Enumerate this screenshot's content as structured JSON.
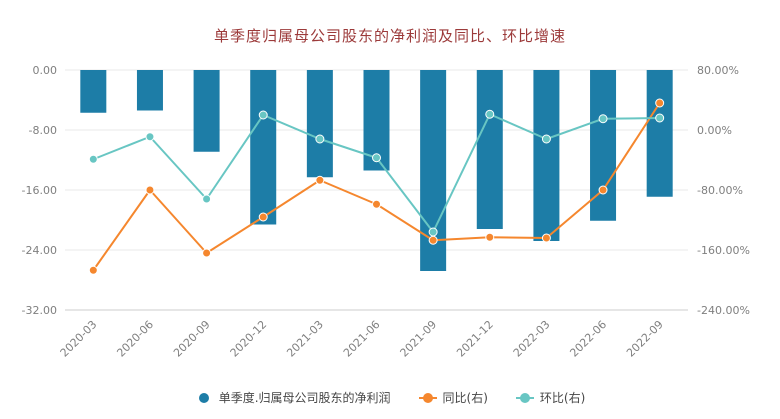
{
  "colors": {
    "title": "#9c3a3a",
    "axis_label": "#7f7f7f",
    "grid": "#e9e9e9",
    "axis_line": "#cccccc",
    "background": "#ffffff",
    "bar": "#1d7da7",
    "yoy_line": "#f5872e",
    "qoq_line": "#68c6c3"
  },
  "chart_data": {
    "type": "bar+line",
    "title": "单季度归属母公司股东的净利润及同比、环比增速",
    "categories": [
      "2020-03",
      "2020-06",
      "2020-09",
      "2020-12",
      "2021-03",
      "2021-06",
      "2021-09",
      "2021-12",
      "2022-03",
      "2022-06",
      "2022-09"
    ],
    "series": [
      {
        "name": "单季度.归属母公司股东的净利润",
        "type": "bar",
        "axis": "left",
        "color": "#1d7da7",
        "values": [
          -5.7,
          -5.4,
          -10.9,
          -20.6,
          -14.3,
          -13.4,
          -26.8,
          -21.2,
          -22.8,
          -20.1,
          -16.9
        ]
      },
      {
        "name": "同比(右)",
        "type": "line",
        "axis": "right",
        "color": "#f5872e",
        "values": [
          -187,
          -80,
          -164,
          -116,
          -67,
          -99,
          -147,
          -143,
          -144,
          -80,
          36
        ]
      },
      {
        "name": "环比(右)",
        "type": "line",
        "axis": "right",
        "color": "#68c6c3",
        "values": [
          -39,
          -9,
          -92,
          20,
          -12,
          -37,
          -136,
          21,
          -12,
          15,
          16
        ]
      }
    ],
    "left_axis": {
      "ticks": [
        "0.00",
        "-8.00",
        "-16.00",
        "-24.00",
        "-32.00"
      ],
      "max": 0,
      "min": -32
    },
    "right_axis": {
      "ticks": [
        "80.00%",
        "0.00%",
        "-80.00%",
        "-160.00%",
        "-240.00%"
      ],
      "max": 80,
      "min": -240
    },
    "grid": true,
    "legend_position": "bottom"
  }
}
